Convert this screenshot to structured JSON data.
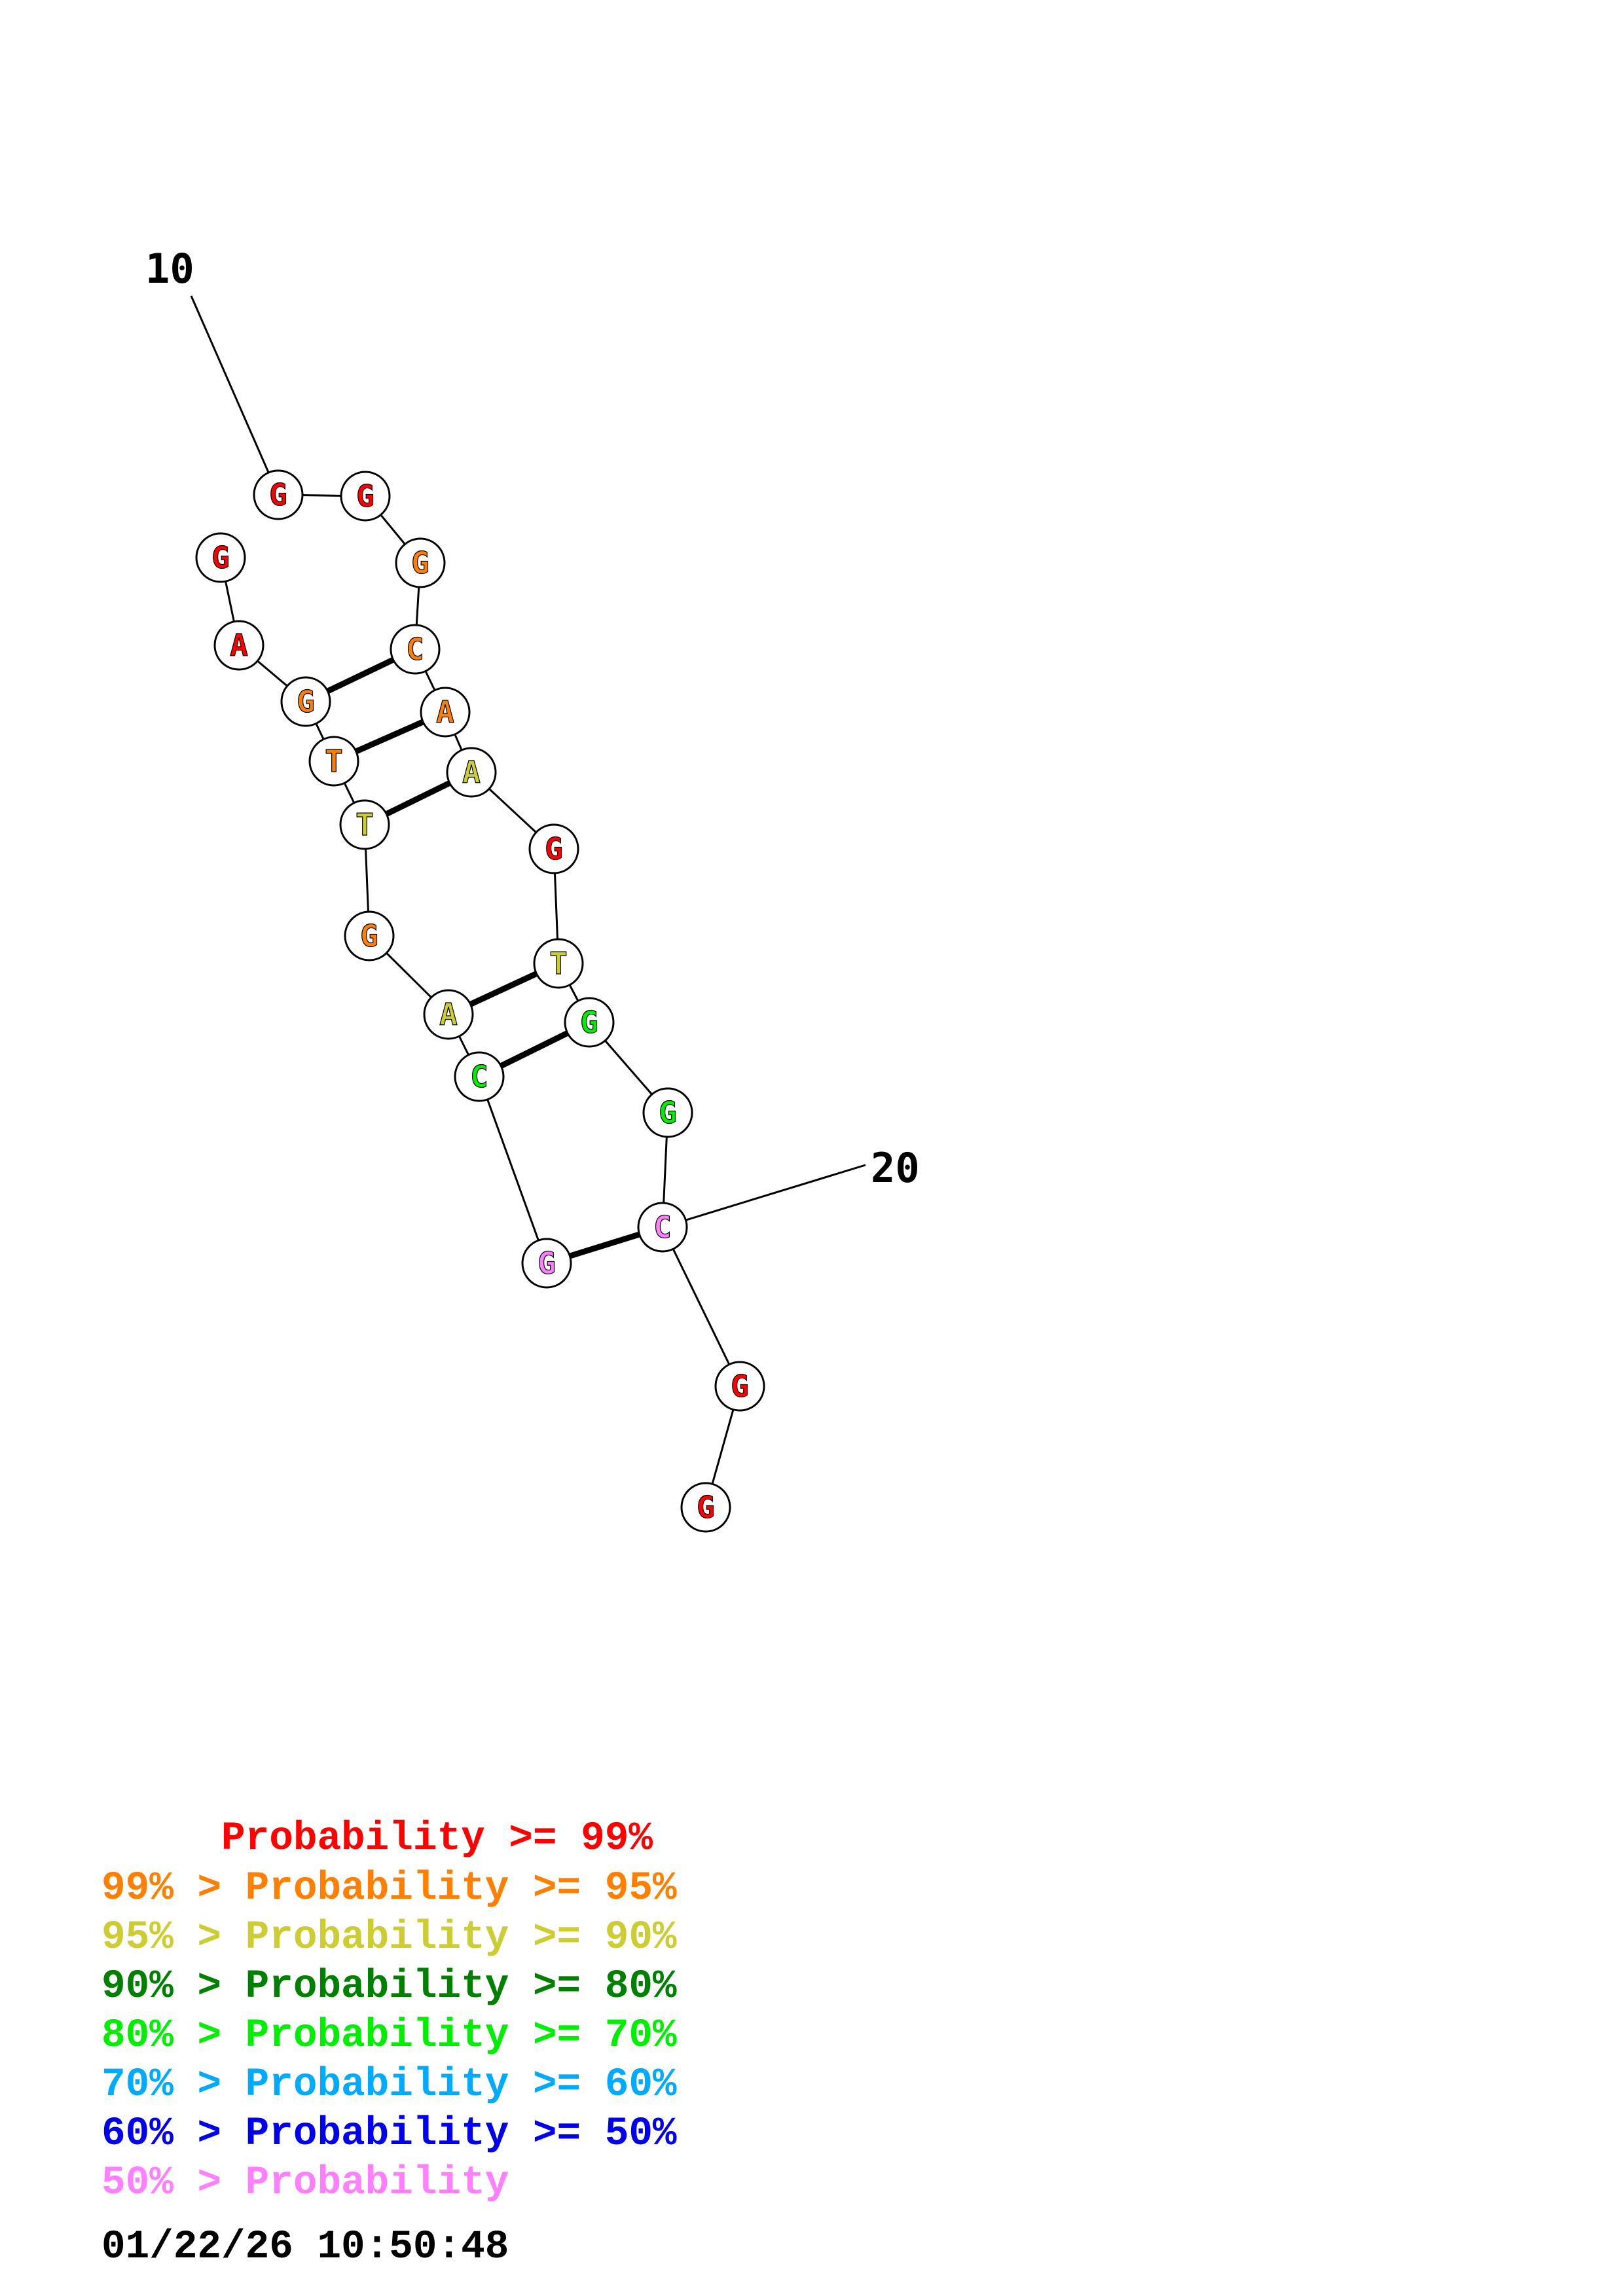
{
  "structure": {
    "nucleotides": [
      {
        "letter": "G",
        "color": "#ff0000"
      },
      {
        "letter": "G",
        "color": "#ff0000"
      },
      {
        "letter": "A",
        "color": "#ff0000"
      },
      {
        "letter": "G",
        "color": "#ff8000"
      },
      {
        "letter": "T",
        "color": "#ff8000"
      },
      {
        "letter": "T",
        "color": "#cccc33"
      },
      {
        "letter": "G",
        "color": "#ff8000"
      },
      {
        "letter": "A",
        "color": "#cccc33"
      },
      {
        "letter": "C",
        "color": "#00ee00"
      },
      {
        "letter": "G",
        "color": "#ff80ff"
      },
      {
        "letter": "C",
        "color": "#ff80ff"
      },
      {
        "letter": "G",
        "color": "#00ee00"
      },
      {
        "letter": "G",
        "color": "#00ee00"
      },
      {
        "letter": "T",
        "color": "#cccc33"
      },
      {
        "letter": "G",
        "color": "#ff0000"
      },
      {
        "letter": "A",
        "color": "#cccc33"
      },
      {
        "letter": "A",
        "color": "#ff8000"
      },
      {
        "letter": "C",
        "color": "#ff8000"
      },
      {
        "letter": "G",
        "color": "#ff8000"
      },
      {
        "letter": "G",
        "color": "#ff0000"
      },
      {
        "letter": "G",
        "color": "#ff0000"
      },
      {
        "letter": "G",
        "color": "#ff0000"
      }
    ],
    "pairs": [
      [
        4,
        18
      ],
      [
        5,
        17
      ],
      [
        6,
        16
      ],
      [
        8,
        14
      ],
      [
        9,
        13
      ],
      [
        10,
        11
      ]
    ],
    "tick_labels": [
      "10",
      "20"
    ]
  },
  "legend": {
    "lines": [
      {
        "text": "     Probability >= 99%",
        "color": "#ff0000"
      },
      {
        "text": "99% > Probability >= 95%",
        "color": "#ff8000"
      },
      {
        "text": "95% > Probability >= 90%",
        "color": "#cccc33"
      },
      {
        "text": "90% > Probability >= 80%",
        "color": "#008000"
      },
      {
        "text": "80% > Probability >= 70%",
        "color": "#00ee00"
      },
      {
        "text": "70% > Probability >= 60%",
        "color": "#00aaff"
      },
      {
        "text": "60% > Probability >= 50%",
        "color": "#0000ee"
      },
      {
        "text": "50% > Probability",
        "color": "#ff80ff"
      }
    ],
    "timestamp": "01/22/26 10:50:48"
  }
}
